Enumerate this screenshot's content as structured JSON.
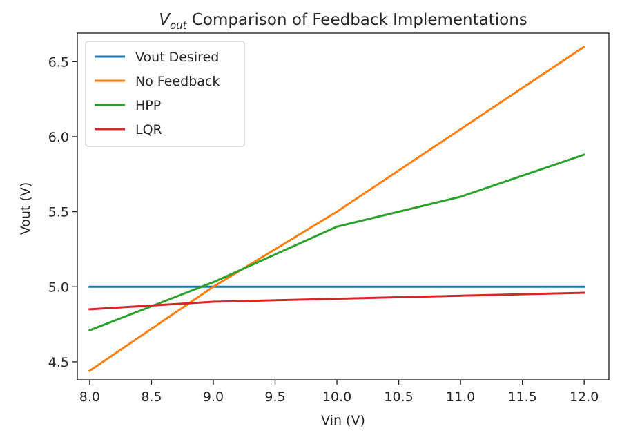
{
  "chart_data": {
    "type": "line",
    "title": {
      "symbol": "V",
      "subscript": "out",
      "rest": " Comparison of Feedback Implementations"
    },
    "xlabel": "Vin (V)",
    "ylabel": "Vout (V)",
    "xlim": [
      7.9,
      12.2
    ],
    "ylim": [
      4.38,
      6.69
    ],
    "xticks": [
      8.0,
      8.5,
      9.0,
      9.5,
      10.0,
      10.5,
      11.0,
      11.5,
      12.0
    ],
    "xtick_labels": [
      "8.0",
      "8.5",
      "9.0",
      "9.5",
      "10.0",
      "10.5",
      "11.0",
      "11.5",
      "12.0"
    ],
    "yticks": [
      4.5,
      5.0,
      5.5,
      6.0,
      6.5
    ],
    "ytick_labels": [
      "4.5",
      "5.0",
      "5.5",
      "6.0",
      "6.5"
    ],
    "legend_position": "top-left",
    "grid": false,
    "series": [
      {
        "name": "Vout Desired",
        "color": "#1f77b4",
        "x": [
          8.0,
          9.0,
          10.0,
          11.0,
          12.0
        ],
        "y": [
          5.0,
          5.0,
          5.0,
          5.0,
          5.0
        ]
      },
      {
        "name": "No Feedback",
        "color": "#ff7f0e",
        "x": [
          8.0,
          9.0,
          10.0,
          11.0,
          12.0
        ],
        "y": [
          4.44,
          5.0,
          5.5,
          6.05,
          6.6
        ]
      },
      {
        "name": "HPP",
        "color": "#2ca02c",
        "x": [
          8.0,
          9.0,
          10.0,
          11.0,
          12.0
        ],
        "y": [
          4.71,
          5.03,
          5.4,
          5.6,
          5.88
        ]
      },
      {
        "name": "LQR",
        "color": "#d62728",
        "x": [
          8.0,
          9.0,
          10.0,
          11.0,
          12.0
        ],
        "y": [
          4.85,
          4.9,
          4.92,
          4.94,
          4.96
        ]
      }
    ]
  }
}
